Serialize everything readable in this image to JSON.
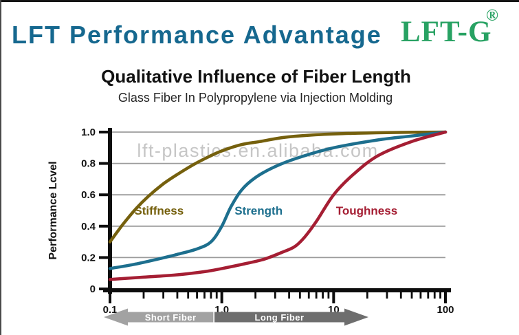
{
  "page": {
    "background": "#ffffff",
    "frame_color": "#151515"
  },
  "header": {
    "title": "LFT Performance Advantage",
    "title_color": "#16688f",
    "logo_text": "LFT-G",
    "logo_mark": "®",
    "logo_color": "#28a263"
  },
  "chart_header": {
    "title": "Qualitative Influence of Fiber Length",
    "subtitle": "Glass Fiber In Polypropylene via Injection Molding"
  },
  "watermark": "lft-plastics.en.alibaba.com",
  "chart_data": {
    "type": "line",
    "x_scale": "log",
    "xlim": [
      0.1,
      100
    ],
    "ylim": [
      0,
      1.0
    ],
    "x_ticks": [
      {
        "value": 0.1,
        "label": "0.1"
      },
      {
        "value": 1.0,
        "label": "1.0"
      },
      {
        "value": 10,
        "label": "10"
      },
      {
        "value": 100,
        "label": "100"
      }
    ],
    "y_ticks": [
      {
        "value": 0,
        "label": "0"
      },
      {
        "value": 0.2,
        "label": "0.2"
      },
      {
        "value": 0.4,
        "label": "0.4"
      },
      {
        "value": 0.6,
        "label": "0.6"
      },
      {
        "value": 0.8,
        "label": "0.8"
      },
      {
        "value": 1.0,
        "label": "1.0"
      }
    ],
    "ylabel": "Performance Lcvel",
    "xlabel": "",
    "grid": true,
    "grid_color": "#9b9b9b",
    "axis_color": "#0d0d0d",
    "watermark_color": "#c6c6c6",
    "series": [
      {
        "name": "Stiffness",
        "color": "#75600d",
        "label_pos": {
          "x": 0.165,
          "y": 0.5
        },
        "points": [
          [
            0.1,
            0.3
          ],
          [
            0.13,
            0.41
          ],
          [
            0.17,
            0.51
          ],
          [
            0.22,
            0.59
          ],
          [
            0.3,
            0.67
          ],
          [
            0.4,
            0.73
          ],
          [
            0.55,
            0.79
          ],
          [
            0.75,
            0.84
          ],
          [
            1.0,
            0.88
          ],
          [
            1.5,
            0.92
          ],
          [
            2.2,
            0.94
          ],
          [
            3.5,
            0.965
          ],
          [
            6,
            0.98
          ],
          [
            12,
            0.99
          ],
          [
            30,
            0.997
          ],
          [
            100,
            1.0
          ]
        ]
      },
      {
        "name": "Strength",
        "color": "#1d6f8e",
        "label_pos": {
          "x": 1.3,
          "y": 0.5
        },
        "points": [
          [
            0.1,
            0.13
          ],
          [
            0.16,
            0.155
          ],
          [
            0.25,
            0.185
          ],
          [
            0.4,
            0.22
          ],
          [
            0.6,
            0.255
          ],
          [
            0.8,
            0.3
          ],
          [
            1.0,
            0.4
          ],
          [
            1.2,
            0.52
          ],
          [
            1.5,
            0.63
          ],
          [
            2.0,
            0.71
          ],
          [
            3.0,
            0.78
          ],
          [
            5.0,
            0.84
          ],
          [
            10,
            0.9
          ],
          [
            25,
            0.95
          ],
          [
            50,
            0.975
          ],
          [
            100,
            1.0
          ]
        ]
      },
      {
        "name": "Toughness",
        "color": "#a51e33",
        "label_pos": {
          "x": 10.5,
          "y": 0.5
        },
        "points": [
          [
            0.1,
            0.06
          ],
          [
            0.2,
            0.075
          ],
          [
            0.4,
            0.09
          ],
          [
            0.7,
            0.11
          ],
          [
            1.0,
            0.13
          ],
          [
            1.6,
            0.16
          ],
          [
            2.4,
            0.19
          ],
          [
            3.5,
            0.235
          ],
          [
            4.5,
            0.27
          ],
          [
            5.5,
            0.33
          ],
          [
            7,
            0.43
          ],
          [
            10,
            0.6
          ],
          [
            15,
            0.73
          ],
          [
            25,
            0.85
          ],
          [
            50,
            0.94
          ],
          [
            100,
            1.0
          ]
        ]
      }
    ],
    "x_axis_bands": [
      {
        "label": "Short Fiber",
        "color": "#a2a2a2",
        "direction": "left",
        "from": 0.088,
        "to": 0.84,
        "text_color": "#ffffff"
      },
      {
        "label": "Long  Fiber",
        "color": "#6e6e6e",
        "direction": "right",
        "from": 0.86,
        "to": 20.5,
        "text_color": "#ffffff"
      }
    ]
  }
}
